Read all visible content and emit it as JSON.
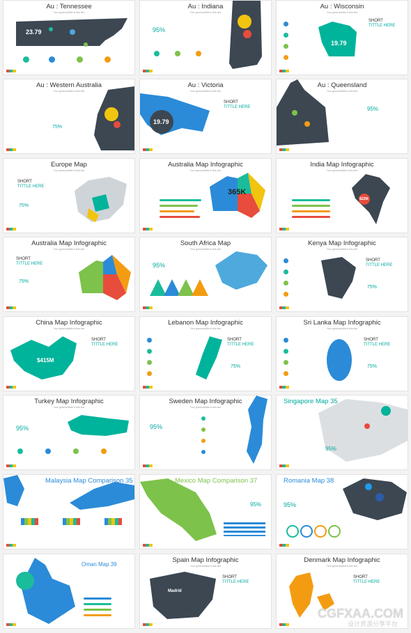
{
  "slides": [
    {
      "title": "Au : Tennessee",
      "stat": "23.79"
    },
    {
      "title": "Au : Indiana",
      "stat": "95%"
    },
    {
      "title": "Au : Wisconsin",
      "stat": "19.79"
    },
    {
      "title": "Au : Western Australia",
      "stat": "75%"
    },
    {
      "title": "Au : Victoria",
      "stat": "19.79"
    },
    {
      "title": "Au : Queensland",
      "stat": "95%"
    },
    {
      "title": "Europe Map",
      "stat": "75%"
    },
    {
      "title": "Australia Map Infographic",
      "stat": "365K"
    },
    {
      "title": "India Map Infographic",
      "stat": "$22M"
    },
    {
      "title": "Australia Map Infographic",
      "stat": "75%"
    },
    {
      "title": "South Africa Map",
      "stat": "95%"
    },
    {
      "title": "Kenya Map Infographic",
      "stat": "75%"
    },
    {
      "title": "China Map Infographic",
      "stat": "$415M"
    },
    {
      "title": "Lebanon Map Infographic",
      "stat": "75%"
    },
    {
      "title": "Sri Lanka Map Infographic",
      "stat": "75%"
    },
    {
      "title": "Turkey Map Infographic",
      "stat": "95%"
    },
    {
      "title": "Sweden Map Infographic",
      "stat": "95%"
    },
    {
      "title": "Singapore Map 35",
      "stat": "95%"
    },
    {
      "title": "Malaysia Map Comparison 35",
      "stat": ""
    },
    {
      "title": "Mexico Map Comparison 37",
      "stat": "95%"
    },
    {
      "title": "Romania Map 38",
      "stat": "95%"
    },
    {
      "title": "Oman Map 39",
      "stat": ""
    },
    {
      "title": "Spain Map Infographic",
      "stat": "Madrid"
    },
    {
      "title": "Denmark Map Infographic",
      "stat": ""
    }
  ],
  "common": {
    "short": "SHORT",
    "tittle": "TITTLE HERE",
    "subtitle": "Your great subtitle in this line"
  },
  "watermark": {
    "main": "CGFXAA.COM",
    "sub": "设计资源分享平台"
  }
}
